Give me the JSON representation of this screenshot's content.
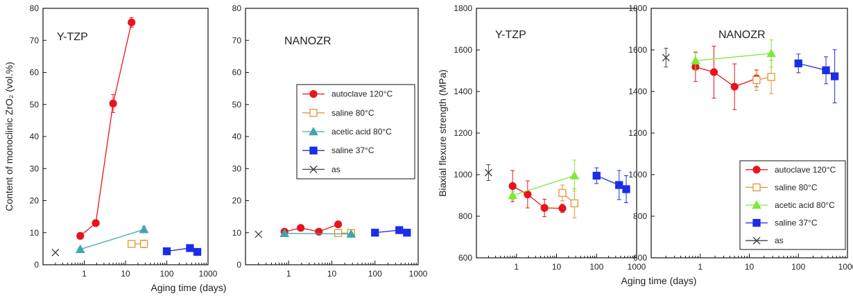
{
  "chart_data": [
    {
      "type": "line",
      "title": "Y-TZP",
      "xlabel": "",
      "ylabel": "Content of monoclinic ZrO₂  (vol.%)",
      "x_scale": "log",
      "xlim": [
        0.1,
        1000
      ],
      "ylim": [
        0,
        80
      ],
      "xticks": [
        "1",
        "10",
        "100",
        "1000"
      ],
      "yticks": [
        "0",
        "10",
        "20",
        "30",
        "40",
        "50",
        "60",
        "70",
        "80"
      ],
      "legend": "none",
      "series": [
        {
          "name": "autoclave 120°C",
          "color": "#e8141b",
          "marker": "circle",
          "filled": true,
          "points": [
            {
              "x": 0.8,
              "y": 9.0,
              "err": 1.0
            },
            {
              "x": 1.9,
              "y": 13.0,
              "err": 1.0
            },
            {
              "x": 5,
              "y": 50.3,
              "err": 2.8
            },
            {
              "x": 14,
              "y": 75.6,
              "err": 1.5
            }
          ]
        },
        {
          "name": "saline 80°C",
          "color": "#e59434",
          "marker": "square",
          "filled": false,
          "points": [
            {
              "x": 14,
              "y": 6.5,
              "err": 0.8
            },
            {
              "x": 28,
              "y": 6.5,
              "err": 1.2
            }
          ]
        },
        {
          "name": "acetic acid 80°C",
          "color": "#3ea6ad",
          "marker": "triangle",
          "filled": true,
          "points": [
            {
              "x": 0.8,
              "y": 4.8,
              "err": 0.5
            },
            {
              "x": 28,
              "y": 11.0,
              "err": 1.0
            }
          ]
        },
        {
          "name": "saline 37°C",
          "color": "#1c2de6",
          "marker": "square",
          "filled": true,
          "points": [
            {
              "x": 100,
              "y": 4.2
            },
            {
              "x": 365,
              "y": 5.2
            },
            {
              "x": 550,
              "y": 4.0
            }
          ]
        },
        {
          "name": "as",
          "color": "#444444",
          "marker": "x",
          "filled": false,
          "points": [
            {
              "x": 0.2,
              "y": 3.8
            }
          ]
        }
      ]
    },
    {
      "type": "line",
      "title": "NANOZR",
      "xlabel": "Aging time (days)",
      "ylabel": "",
      "x_scale": "log",
      "xlim": [
        0.1,
        1000
      ],
      "ylim": [
        0,
        80
      ],
      "xticks": [
        "1",
        "10",
        "100",
        "1000"
      ],
      "yticks": [
        "0",
        "10",
        "20",
        "30",
        "40",
        "50",
        "60",
        "70",
        "80"
      ],
      "legend": "center-right",
      "series": [
        {
          "name": "autoclave 120°C",
          "color": "#e8141b",
          "marker": "circle",
          "filled": true,
          "points": [
            {
              "x": 0.8,
              "y": 10.3
            },
            {
              "x": 1.9,
              "y": 11.5
            },
            {
              "x": 5,
              "y": 10.3
            },
            {
              "x": 14,
              "y": 12.6
            }
          ]
        },
        {
          "name": "saline 80°C",
          "color": "#e59434",
          "marker": "square",
          "filled": false,
          "points": [
            {
              "x": 14,
              "y": 9.9
            },
            {
              "x": 28,
              "y": 9.9
            }
          ]
        },
        {
          "name": "acetic acid 80°C",
          "color": "#3ea6ad",
          "marker": "triangle",
          "filled": true,
          "points": [
            {
              "x": 0.8,
              "y": 9.8
            },
            {
              "x": 28,
              "y": 9.6
            }
          ]
        },
        {
          "name": "saline 37°C",
          "color": "#1c2de6",
          "marker": "square",
          "filled": true,
          "points": [
            {
              "x": 100,
              "y": 10.0
            },
            {
              "x": 365,
              "y": 10.8
            },
            {
              "x": 550,
              "y": 10.0
            }
          ]
        },
        {
          "name": "as",
          "color": "#444444",
          "marker": "x",
          "filled": false,
          "points": [
            {
              "x": 0.2,
              "y": 9.5
            }
          ]
        }
      ]
    },
    {
      "type": "line",
      "title": "Y-TZP",
      "xlabel": "",
      "ylabel": "Biaxial flexure strength  (MPa)",
      "x_scale": "log",
      "xlim": [
        0.1,
        1000
      ],
      "ylim": [
        600,
        1800
      ],
      "xticks": [
        "1",
        "10",
        "100",
        "1000"
      ],
      "yticks": [
        "600",
        "800",
        "1000",
        "1200",
        "1400",
        "1600",
        "1800"
      ],
      "legend": "none",
      "series": [
        {
          "name": "autoclave 120°C",
          "color": "#e8141b",
          "marker": "circle",
          "filled": true,
          "points": [
            {
              "x": 0.8,
              "y": 945,
              "err": 75
            },
            {
              "x": 1.9,
              "y": 905,
              "err": 65
            },
            {
              "x": 5,
              "y": 840,
              "err": 42
            },
            {
              "x": 14,
              "y": 838,
              "err": 20
            }
          ]
        },
        {
          "name": "saline 80°C",
          "color": "#e59434",
          "marker": "square",
          "filled": false,
          "points": [
            {
              "x": 14,
              "y": 912,
              "err": 38
            },
            {
              "x": 28,
              "y": 862,
              "err": 70
            }
          ]
        },
        {
          "name": "acetic acid 80°C",
          "color": "#7fe83a",
          "marker": "triangle",
          "filled": true,
          "points": [
            {
              "x": 0.8,
              "y": 900,
              "err": 20
            },
            {
              "x": 28,
              "y": 995,
              "err": 75
            }
          ]
        },
        {
          "name": "saline 37°C",
          "color": "#1c2de6",
          "marker": "square",
          "filled": true,
          "points": [
            {
              "x": 100,
              "y": 995,
              "err": 38
            },
            {
              "x": 365,
              "y": 950,
              "err": 70
            },
            {
              "x": 550,
              "y": 930,
              "err": 65
            }
          ]
        },
        {
          "name": "as",
          "color": "#444444",
          "marker": "x",
          "filled": false,
          "points": [
            {
              "x": 0.2,
              "y": 1010,
              "err": 38
            }
          ]
        }
      ]
    },
    {
      "type": "line",
      "title": "NANOZR",
      "xlabel": "Aging time  (days)",
      "ylabel": "",
      "x_scale": "log",
      "xlim": [
        0.1,
        1000
      ],
      "ylim": [
        600,
        1800
      ],
      "xticks": [
        "1",
        "10",
        "100",
        "1000"
      ],
      "yticks": [
        "600",
        "800",
        "1000",
        "1200",
        "1400",
        "1600",
        "1800"
      ],
      "legend": "bottom-right",
      "series": [
        {
          "name": "autoclave 120°C",
          "color": "#e8141b",
          "marker": "circle",
          "filled": true,
          "points": [
            {
              "x": 0.8,
              "y": 1518,
              "err": 70
            },
            {
              "x": 1.9,
              "y": 1493,
              "err": 125
            },
            {
              "x": 5,
              "y": 1423,
              "err": 110
            },
            {
              "x": 14,
              "y": 1463,
              "err": 40
            }
          ]
        },
        {
          "name": "saline 80°C",
          "color": "#e59434",
          "marker": "square",
          "filled": false,
          "points": [
            {
              "x": 14,
              "y": 1455,
              "err": 50
            },
            {
              "x": 28,
              "y": 1470,
              "err": 80
            }
          ]
        },
        {
          "name": "acetic acid 80°C",
          "color": "#7fe83a",
          "marker": "triangle",
          "filled": true,
          "points": [
            {
              "x": 0.8,
              "y": 1548,
              "err": 45
            },
            {
              "x": 28,
              "y": 1583,
              "err": 65
            }
          ]
        },
        {
          "name": "saline 37°C",
          "color": "#1c2de6",
          "marker": "square",
          "filled": true,
          "points": [
            {
              "x": 100,
              "y": 1535,
              "err": 45
            },
            {
              "x": 365,
              "y": 1502,
              "err": 65
            },
            {
              "x": 550,
              "y": 1473,
              "err": 128
            }
          ]
        },
        {
          "name": "as",
          "color": "#444444",
          "marker": "x",
          "filled": false,
          "points": [
            {
              "x": 0.2,
              "y": 1563,
              "err": 45
            }
          ]
        }
      ]
    }
  ]
}
